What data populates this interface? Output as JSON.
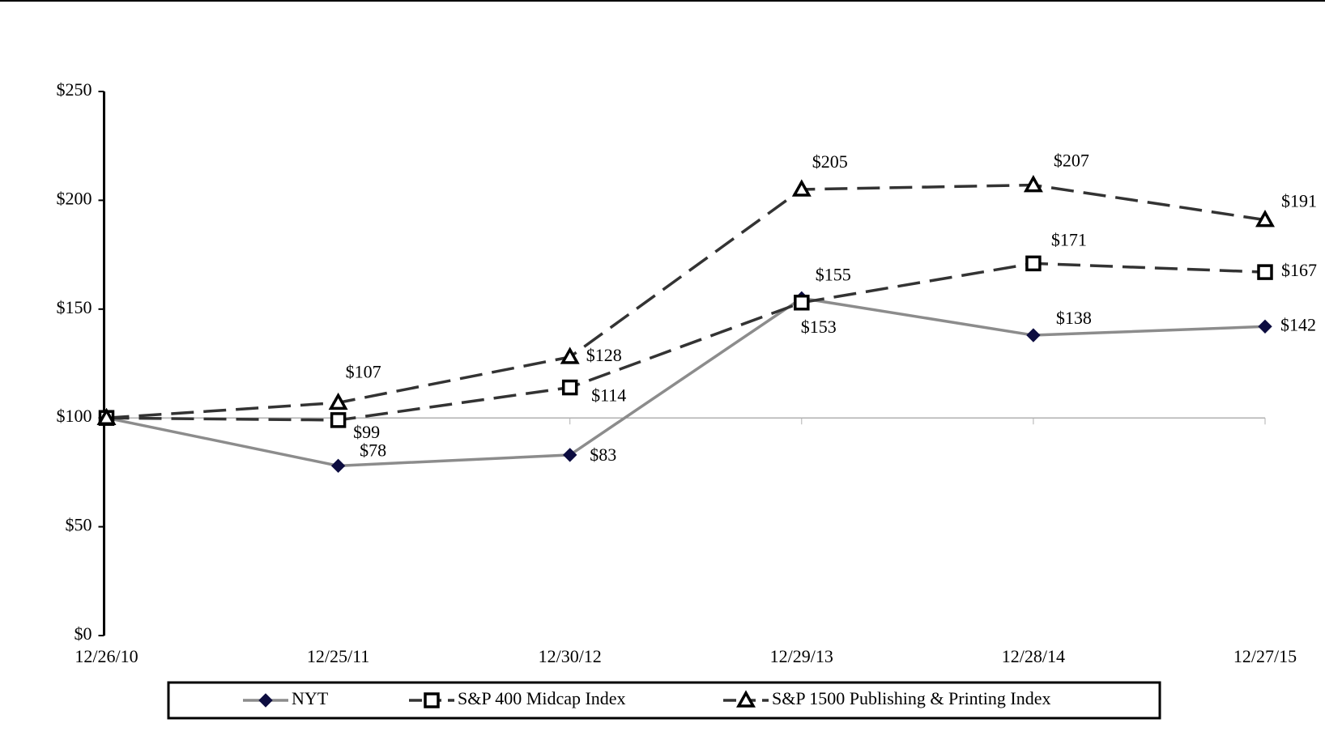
{
  "chart_data": {
    "type": "line",
    "categories": [
      "12/26/10",
      "12/25/11",
      "12/30/12",
      "12/29/13",
      "12/28/14",
      "12/27/15"
    ],
    "series": [
      {
        "name": "NYT",
        "color": "#8c8c8c",
        "marker": "diamond",
        "dashed": false,
        "values": [
          100,
          78,
          83,
          155,
          138,
          142
        ],
        "value_labels": [
          null,
          "$78",
          "$83",
          "$155",
          "$138",
          "$142"
        ]
      },
      {
        "name": "S&P 400 Midcap Index",
        "color": "#333333",
        "marker": "square",
        "dashed": true,
        "values": [
          100,
          99,
          114,
          153,
          171,
          167
        ],
        "value_labels": [
          null,
          "$99",
          "$114",
          "$153",
          "$171",
          "$167"
        ]
      },
      {
        "name": "S&P 1500 Publishing & Printing Index",
        "color": "#333333",
        "marker": "triangle",
        "dashed": true,
        "values": [
          100,
          107,
          128,
          205,
          207,
          191
        ],
        "value_labels": [
          null,
          "$107",
          "$128",
          "$205",
          "$207",
          "$191"
        ]
      }
    ],
    "ylim": [
      0,
      250
    ],
    "yticks": [
      {
        "value": 0,
        "label": "$0"
      },
      {
        "value": 50,
        "label": "$50"
      },
      {
        "value": 100,
        "label": "$100"
      },
      {
        "value": 150,
        "label": "$150"
      },
      {
        "value": 200,
        "label": "$200"
      },
      {
        "value": 250,
        "label": "$250"
      }
    ],
    "baseline": 100,
    "legend": "bottom"
  }
}
